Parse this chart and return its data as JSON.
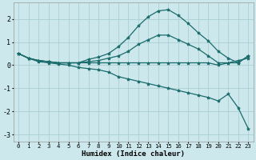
{
  "xlabel": "Humidex (Indice chaleur)",
  "background_color": "#cce8ec",
  "grid_color": "#aacfd4",
  "line_color": "#1a6b6b",
  "xlim": [
    -0.5,
    23.5
  ],
  "ylim": [
    -3.3,
    2.7
  ],
  "xticks": [
    0,
    1,
    2,
    3,
    4,
    5,
    6,
    7,
    8,
    9,
    10,
    11,
    12,
    13,
    14,
    15,
    16,
    17,
    18,
    19,
    20,
    21,
    22,
    23
  ],
  "yticks": [
    -3,
    -2,
    -1,
    0,
    1,
    2
  ],
  "series": [
    {
      "x": [
        0,
        1,
        2,
        3,
        4,
        5,
        6,
        7,
        8,
        9,
        10,
        11,
        12,
        13,
        14,
        15,
        16,
        17,
        18,
        19,
        20,
        21,
        22,
        23
      ],
      "y": [
        0.5,
        0.3,
        0.2,
        0.15,
        0.1,
        0.1,
        0.1,
        0.25,
        0.35,
        0.5,
        0.8,
        1.2,
        1.7,
        2.1,
        2.35,
        2.4,
        2.15,
        1.8,
        1.4,
        1.05,
        0.6,
        0.3,
        0.1,
        0.4
      ]
    },
    {
      "x": [
        0,
        1,
        2,
        3,
        4,
        5,
        6,
        7,
        8,
        9,
        10,
        11,
        12,
        13,
        14,
        15,
        16,
        17,
        18,
        19,
        20,
        21,
        22,
        23
      ],
      "y": [
        0.5,
        0.3,
        0.2,
        0.15,
        0.1,
        0.1,
        0.1,
        0.15,
        0.2,
        0.3,
        0.4,
        0.6,
        0.9,
        1.1,
        1.3,
        1.3,
        1.1,
        0.9,
        0.7,
        0.4,
        0.1,
        0.1,
        0.2,
        0.3
      ]
    },
    {
      "x": [
        0,
        1,
        2,
        3,
        4,
        5,
        6,
        7,
        8,
        9,
        10,
        11,
        12,
        13,
        14,
        15,
        16,
        17,
        18,
        19,
        20,
        21,
        22,
        23
      ],
      "y": [
        0.5,
        0.3,
        0.2,
        0.15,
        0.1,
        0.1,
        0.1,
        0.1,
        0.1,
        0.1,
        0.1,
        0.1,
        0.1,
        0.1,
        0.1,
        0.1,
        0.1,
        0.1,
        0.1,
        0.1,
        0.0,
        0.1,
        0.1,
        0.4
      ]
    },
    {
      "x": [
        0,
        1,
        2,
        3,
        4,
        5,
        6,
        7,
        8,
        9,
        10,
        11,
        12,
        13,
        14,
        15,
        16,
        17,
        18,
        19,
        20,
        21,
        22,
        23
      ],
      "y": [
        0.5,
        0.3,
        0.15,
        0.1,
        0.05,
        0.0,
        -0.1,
        -0.15,
        -0.2,
        -0.3,
        -0.5,
        -0.6,
        -0.7,
        -0.8,
        -0.9,
        -1.0,
        -1.1,
        -1.2,
        -1.3,
        -1.4,
        -1.55,
        -1.25,
        -1.85,
        -2.75
      ]
    }
  ]
}
